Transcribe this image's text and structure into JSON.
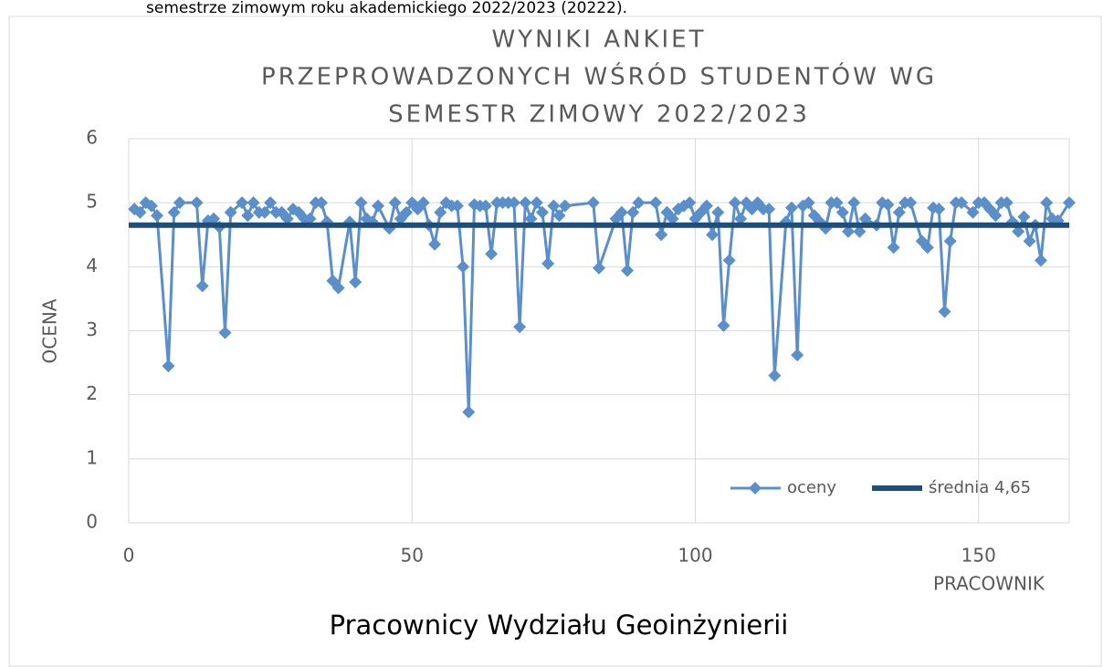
{
  "header_text": "semestrze zimowym roku akademickiego 2022/2023 (20222).",
  "chart_data": {
    "type": "line",
    "title": [
      "WYNIKI ANKIET",
      "PRZEPROWADZONYCH WŚRÓD STUDENTÓW WG",
      "SEMESTR ZIMOWY 2022/2023"
    ],
    "x_label": "PRACOWNIK",
    "y_label": "OCENA",
    "footer_label": "Pracownicy Wydziału Geoinżynierii",
    "xlim": [
      0,
      166
    ],
    "xticks": [
      0,
      50,
      100,
      150
    ],
    "ylim": [
      0,
      6
    ],
    "yticks": [
      0,
      1,
      2,
      3,
      4,
      5,
      6
    ],
    "grid": true,
    "legend": "lower right",
    "x": [
      1,
      2,
      3,
      4,
      5,
      7,
      8,
      9,
      12,
      13,
      14,
      15,
      16,
      17,
      18,
      20,
      21,
      22,
      23,
      24,
      25,
      26,
      27,
      28,
      29,
      30,
      31,
      32,
      33,
      34,
      35,
      36,
      37,
      39,
      40,
      41,
      42,
      43,
      44,
      46,
      47,
      48,
      49,
      50,
      51,
      52,
      53,
      54,
      55,
      56,
      57,
      58,
      59,
      60,
      61,
      62,
      63,
      64,
      65,
      66,
      67,
      68,
      69,
      70,
      71,
      72,
      73,
      74,
      75,
      76,
      77,
      82,
      83,
      86,
      87,
      88,
      89,
      90,
      93,
      94,
      95,
      96,
      97,
      98,
      99,
      100,
      101,
      102,
      103,
      104,
      105,
      106,
      107,
      108,
      109,
      110,
      111,
      112,
      113,
      114,
      116,
      117,
      118,
      119,
      120,
      121,
      122,
      123,
      124,
      125,
      126,
      127,
      128,
      129,
      130,
      132,
      133,
      134,
      135,
      136,
      137,
      138,
      140,
      141,
      142,
      143,
      144,
      145,
      146,
      147,
      149,
      150,
      151,
      152,
      153,
      154,
      155,
      156,
      157,
      158,
      159,
      160,
      161,
      162,
      163,
      164,
      166
    ],
    "series": [
      {
        "name": "oceny",
        "color": "#5b8fc9",
        "marker": "diamond",
        "values": [
          4.9,
          4.85,
          5.0,
          4.95,
          4.8,
          2.45,
          4.85,
          5.0,
          5.0,
          3.7,
          4.72,
          4.75,
          4.62,
          2.97,
          4.85,
          5.0,
          4.8,
          5.0,
          4.85,
          4.85,
          5.0,
          4.85,
          4.85,
          4.75,
          4.9,
          4.85,
          4.75,
          4.75,
          5.0,
          5.0,
          4.7,
          3.78,
          3.67,
          4.7,
          3.76,
          5.0,
          4.75,
          4.7,
          4.95,
          4.6,
          5.0,
          4.75,
          4.85,
          5.0,
          4.9,
          5.0,
          4.65,
          4.35,
          4.85,
          5.0,
          4.95,
          4.95,
          4.0,
          1.73,
          4.97,
          4.95,
          4.95,
          4.2,
          5.0,
          5.0,
          5.0,
          5.0,
          3.06,
          5.0,
          4.75,
          5.0,
          4.85,
          4.05,
          4.95,
          4.8,
          4.95,
          5.0,
          3.98,
          4.75,
          4.85,
          3.94,
          4.85,
          5.0,
          5.0,
          4.5,
          4.85,
          4.75,
          4.9,
          4.95,
          5.0,
          4.75,
          4.85,
          4.95,
          4.5,
          4.85,
          3.08,
          4.1,
          5.0,
          4.75,
          5.0,
          4.9,
          5.0,
          4.9,
          4.9,
          2.3,
          4.7,
          4.92,
          2.62,
          4.95,
          5.0,
          4.8,
          4.7,
          4.6,
          5.0,
          5.0,
          4.85,
          4.55,
          5.0,
          4.55,
          4.75,
          4.65,
          5.0,
          4.97,
          4.3,
          4.85,
          5.0,
          5.0,
          4.4,
          4.3,
          4.92,
          4.9,
          3.3,
          4.4,
          5.0,
          5.0,
          4.85,
          5.0,
          5.0,
          4.9,
          4.8,
          5.0,
          5.0,
          4.7,
          4.55,
          4.78,
          4.4,
          4.65,
          4.1,
          5.0,
          4.75,
          4.72,
          5.0
        ]
      },
      {
        "name": "średnia 4,65",
        "color": "#1f4e79",
        "x": [
          0,
          166
        ],
        "values": [
          4.65,
          4.65
        ]
      }
    ]
  }
}
